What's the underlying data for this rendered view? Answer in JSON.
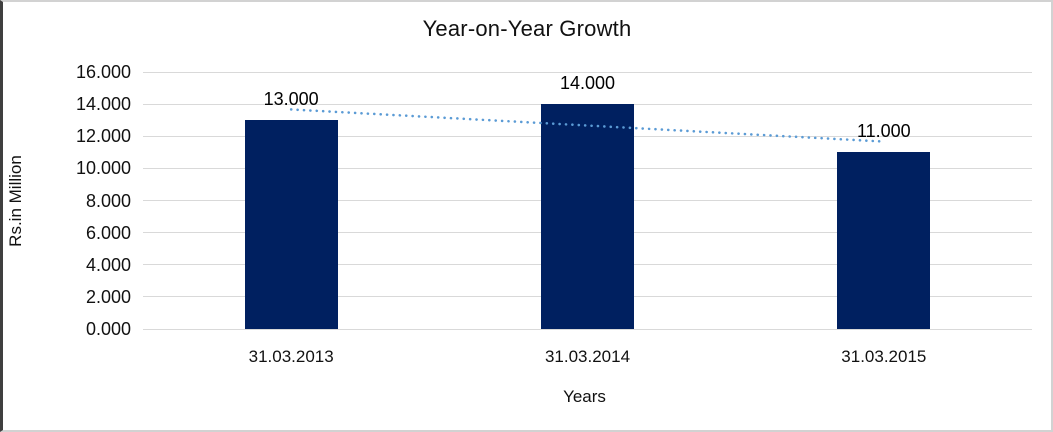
{
  "chart_data": {
    "type": "bar",
    "title": "Year-on-Year Growth",
    "xlabel": "Years",
    "ylabel": "Rs.in Million",
    "categories": [
      "31.03.2013",
      "31.03.2014",
      "31.03.2015"
    ],
    "values": [
      13.0,
      14.0,
      11.0
    ],
    "data_labels": [
      "13.000",
      "14.000",
      "11.000"
    ],
    "ylim": [
      0,
      16
    ],
    "yticks": [
      {
        "value": 0,
        "label": "0.000"
      },
      {
        "value": 2,
        "label": "2.000"
      },
      {
        "value": 4,
        "label": "4.000"
      },
      {
        "value": 6,
        "label": "6.000"
      },
      {
        "value": 8,
        "label": "8.000"
      },
      {
        "value": 10,
        "label": "10.000"
      },
      {
        "value": 12,
        "label": "12.000"
      },
      {
        "value": 14,
        "label": "14.000"
      },
      {
        "value": 16,
        "label": "16.000"
      }
    ],
    "grid": true,
    "legend": "none",
    "trendline": {
      "type": "linear",
      "style": "dotted",
      "endpoints": [
        13.667,
        11.667
      ]
    },
    "colors": {
      "bar": "#002060",
      "gridline": "#D9D9D9",
      "trendline": "#5B9BD5",
      "text": "#000000",
      "frame_border": "#D2D2D2",
      "frame_border_left": "#3F3F3F"
    }
  }
}
